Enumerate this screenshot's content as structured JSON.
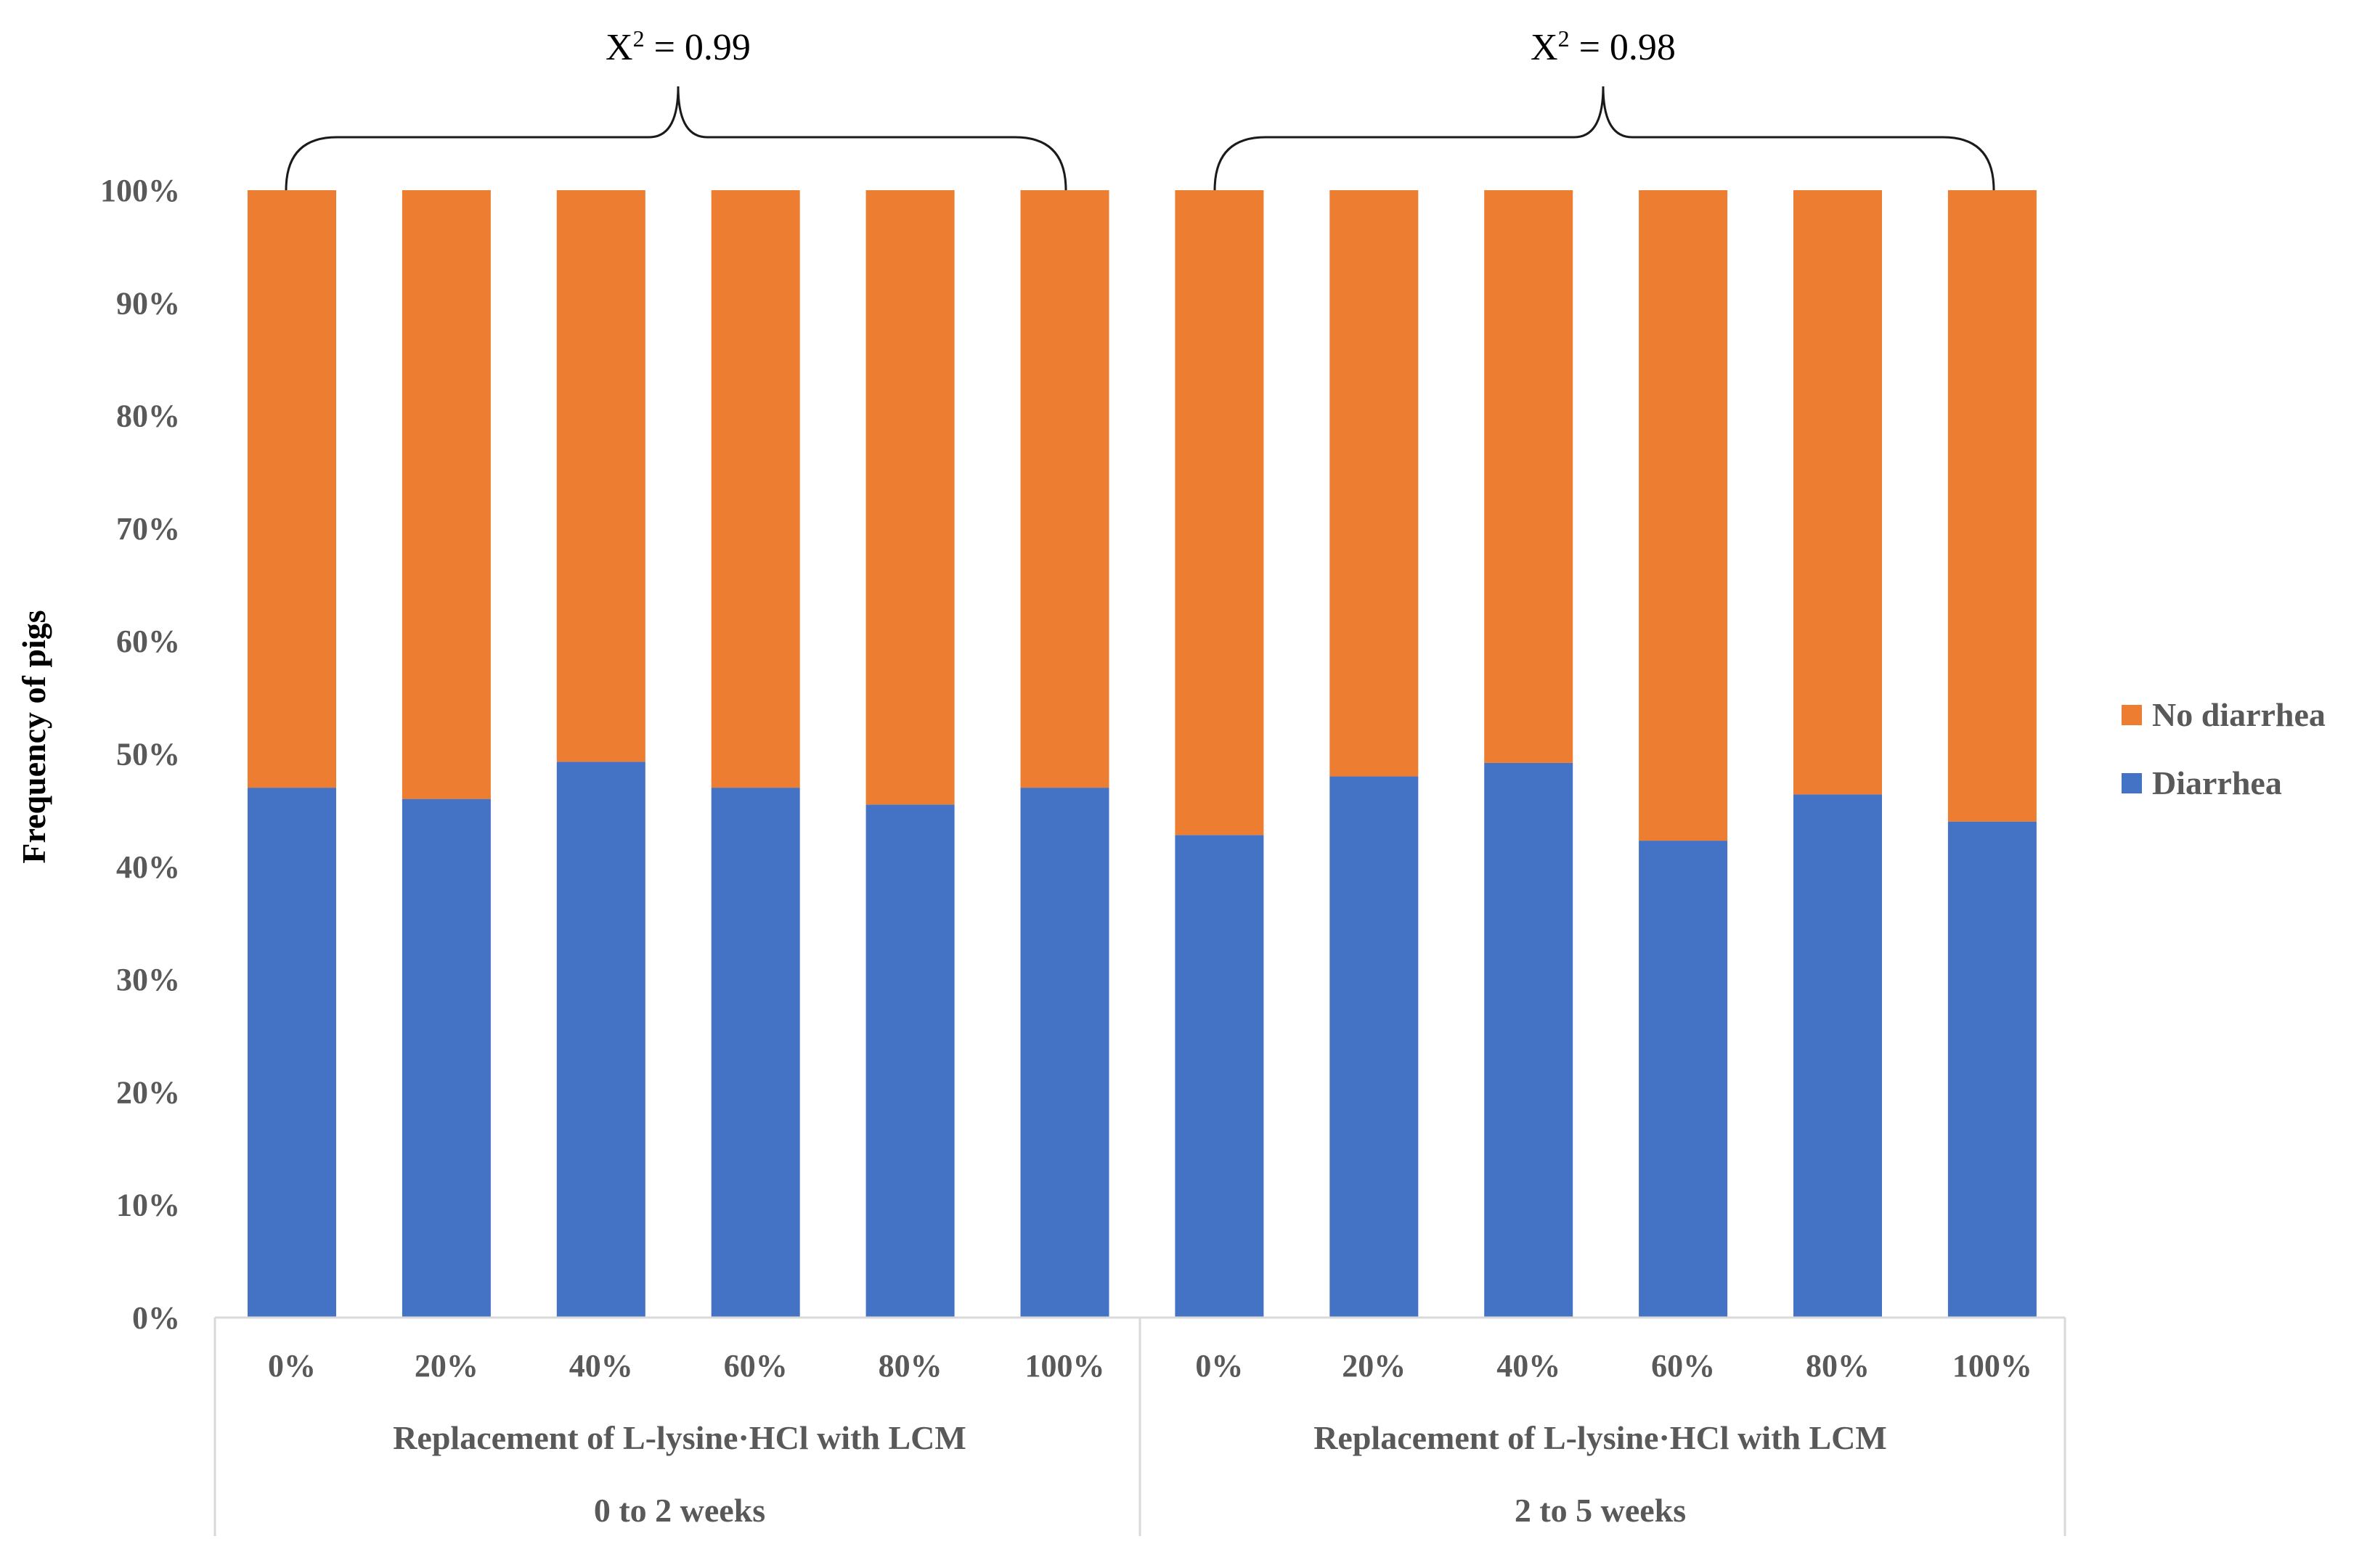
{
  "chart_data": {
    "type": "bar",
    "stacked": true,
    "percent_stacked": true,
    "ylabel": "Frequency of pigs",
    "ylim": [
      0,
      100
    ],
    "y_ticks": [
      "0%",
      "10%",
      "20%",
      "30%",
      "40%",
      "50%",
      "60%",
      "70%",
      "80%",
      "90%",
      "100%"
    ],
    "groups": [
      {
        "label": "Replacement of L-lysine·HCl with LCM",
        "period": "0 to 2 weeks",
        "categories": [
          "0%",
          "20%",
          "40%",
          "60%",
          "80%",
          "100%"
        ],
        "chi_square": {
          "prefix": "X",
          "superscript": "2",
          "suffix": " = 0.99"
        }
      },
      {
        "label": "Replacement of L-lysine·HCl with LCM",
        "period": "2 to 5 weeks",
        "categories": [
          "0%",
          "20%",
          "40%",
          "60%",
          "80%",
          "100%"
        ],
        "chi_square": {
          "prefix": "X",
          "superscript": "2",
          "suffix": " = 0.98"
        }
      }
    ],
    "series": [
      {
        "name": "Diarrhea",
        "color": "#4472C4",
        "values": [
          47,
          46,
          49.3,
          47,
          45.5,
          47,
          42.8,
          48,
          49.2,
          42.3,
          46.4,
          44
        ]
      },
      {
        "name": "No diarrhea",
        "color": "#ED7D31",
        "values": [
          53,
          54,
          50.7,
          53,
          54.5,
          53,
          57.2,
          52,
          50.8,
          57.7,
          53.6,
          56
        ]
      }
    ],
    "legend": [
      {
        "name": "No diarrhea",
        "color": "#ED7D31"
      },
      {
        "name": "Diarrhea",
        "color": "#4472C4"
      }
    ],
    "legend_position": "right"
  }
}
